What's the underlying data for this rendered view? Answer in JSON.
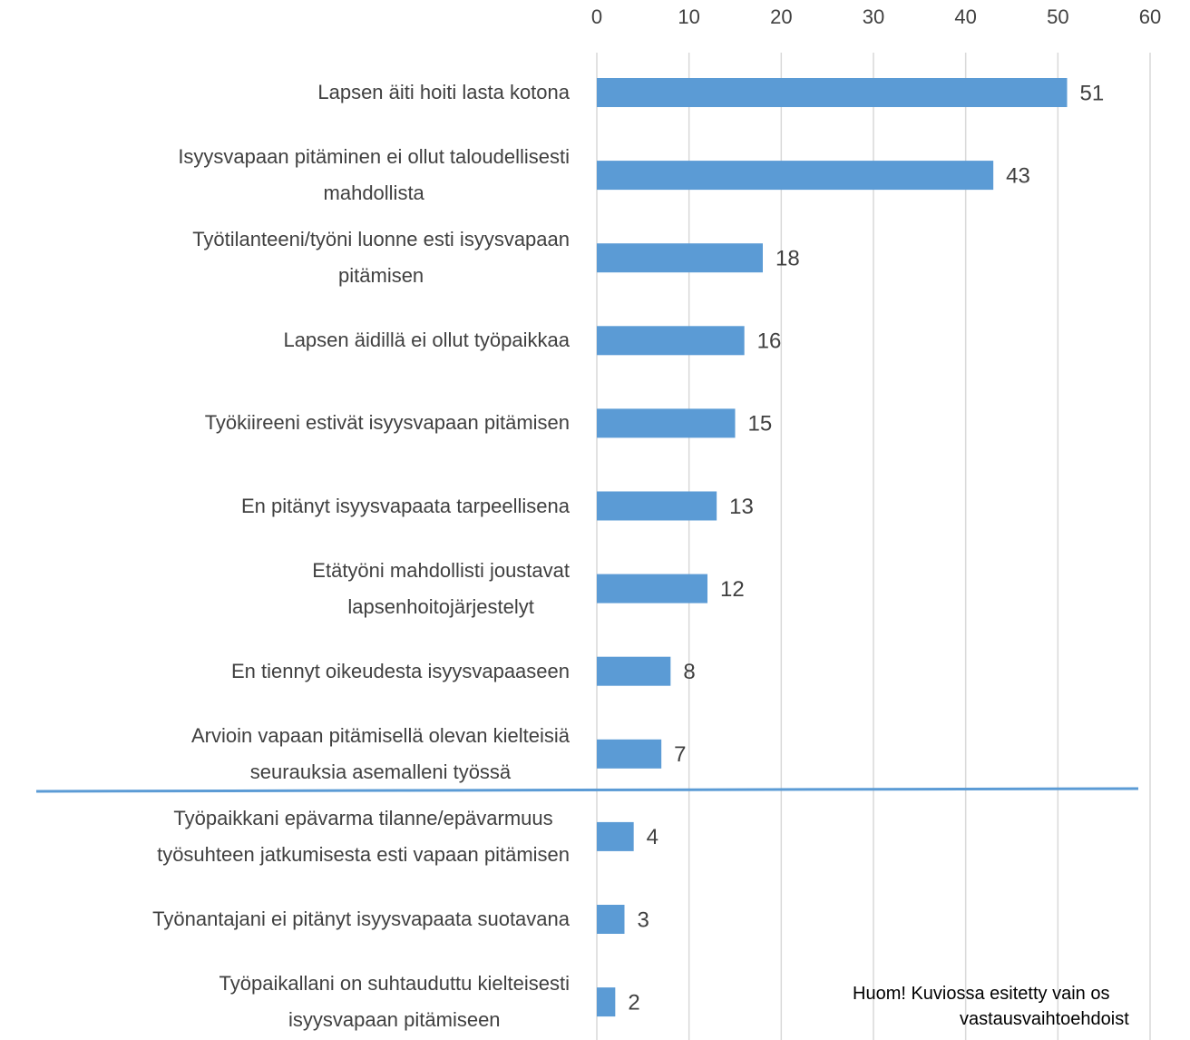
{
  "chart_data": {
    "type": "bar",
    "orientation": "horizontal",
    "categories": [
      "Lapsen äiti hoiti lasta kotona",
      "Isyysvapaan pitäminen ei ollut taloudellisesti\nmahdollista",
      "Työtilanteeni/työni luonne esti isyysvapaan\npitämisen",
      "Lapsen äidillä ei ollut työpaikkaa",
      "Työkiireeni estivät isyysvapaan pitämisen",
      "En pitänyt isyysvapaata tarpeellisena",
      "Etätyöni mahdollisti joustavat\nlapsenhoitojärjestelyt",
      "En tiennyt oikeudesta isyysvapaaseen",
      "Arvioin vapaan pitämisellä olevan kielteisiä\nseurauksia asemalleni työssä",
      "Työpaikkani epävarma tilanne/epävarmuus\ntyösuhteen jatkumisesta esti vapaan pitämisen",
      "Työnantajani ei pitänyt isyysvapaata suotavana",
      "Työpaikallani on suhtauduttu kielteisesti\nisyysvapaan pitämiseen"
    ],
    "values": [
      51,
      43,
      18,
      16,
      15,
      13,
      12,
      8,
      7,
      4,
      3,
      2
    ],
    "color": "#5b9bd5",
    "xlim": [
      0,
      60
    ],
    "xticks": [
      0,
      10,
      20,
      30,
      40,
      50,
      60
    ],
    "grid": true,
    "annotations": [
      "Huom! Kuviossa esitetty vain os",
      "vastausvaihtoehdoist"
    ]
  }
}
